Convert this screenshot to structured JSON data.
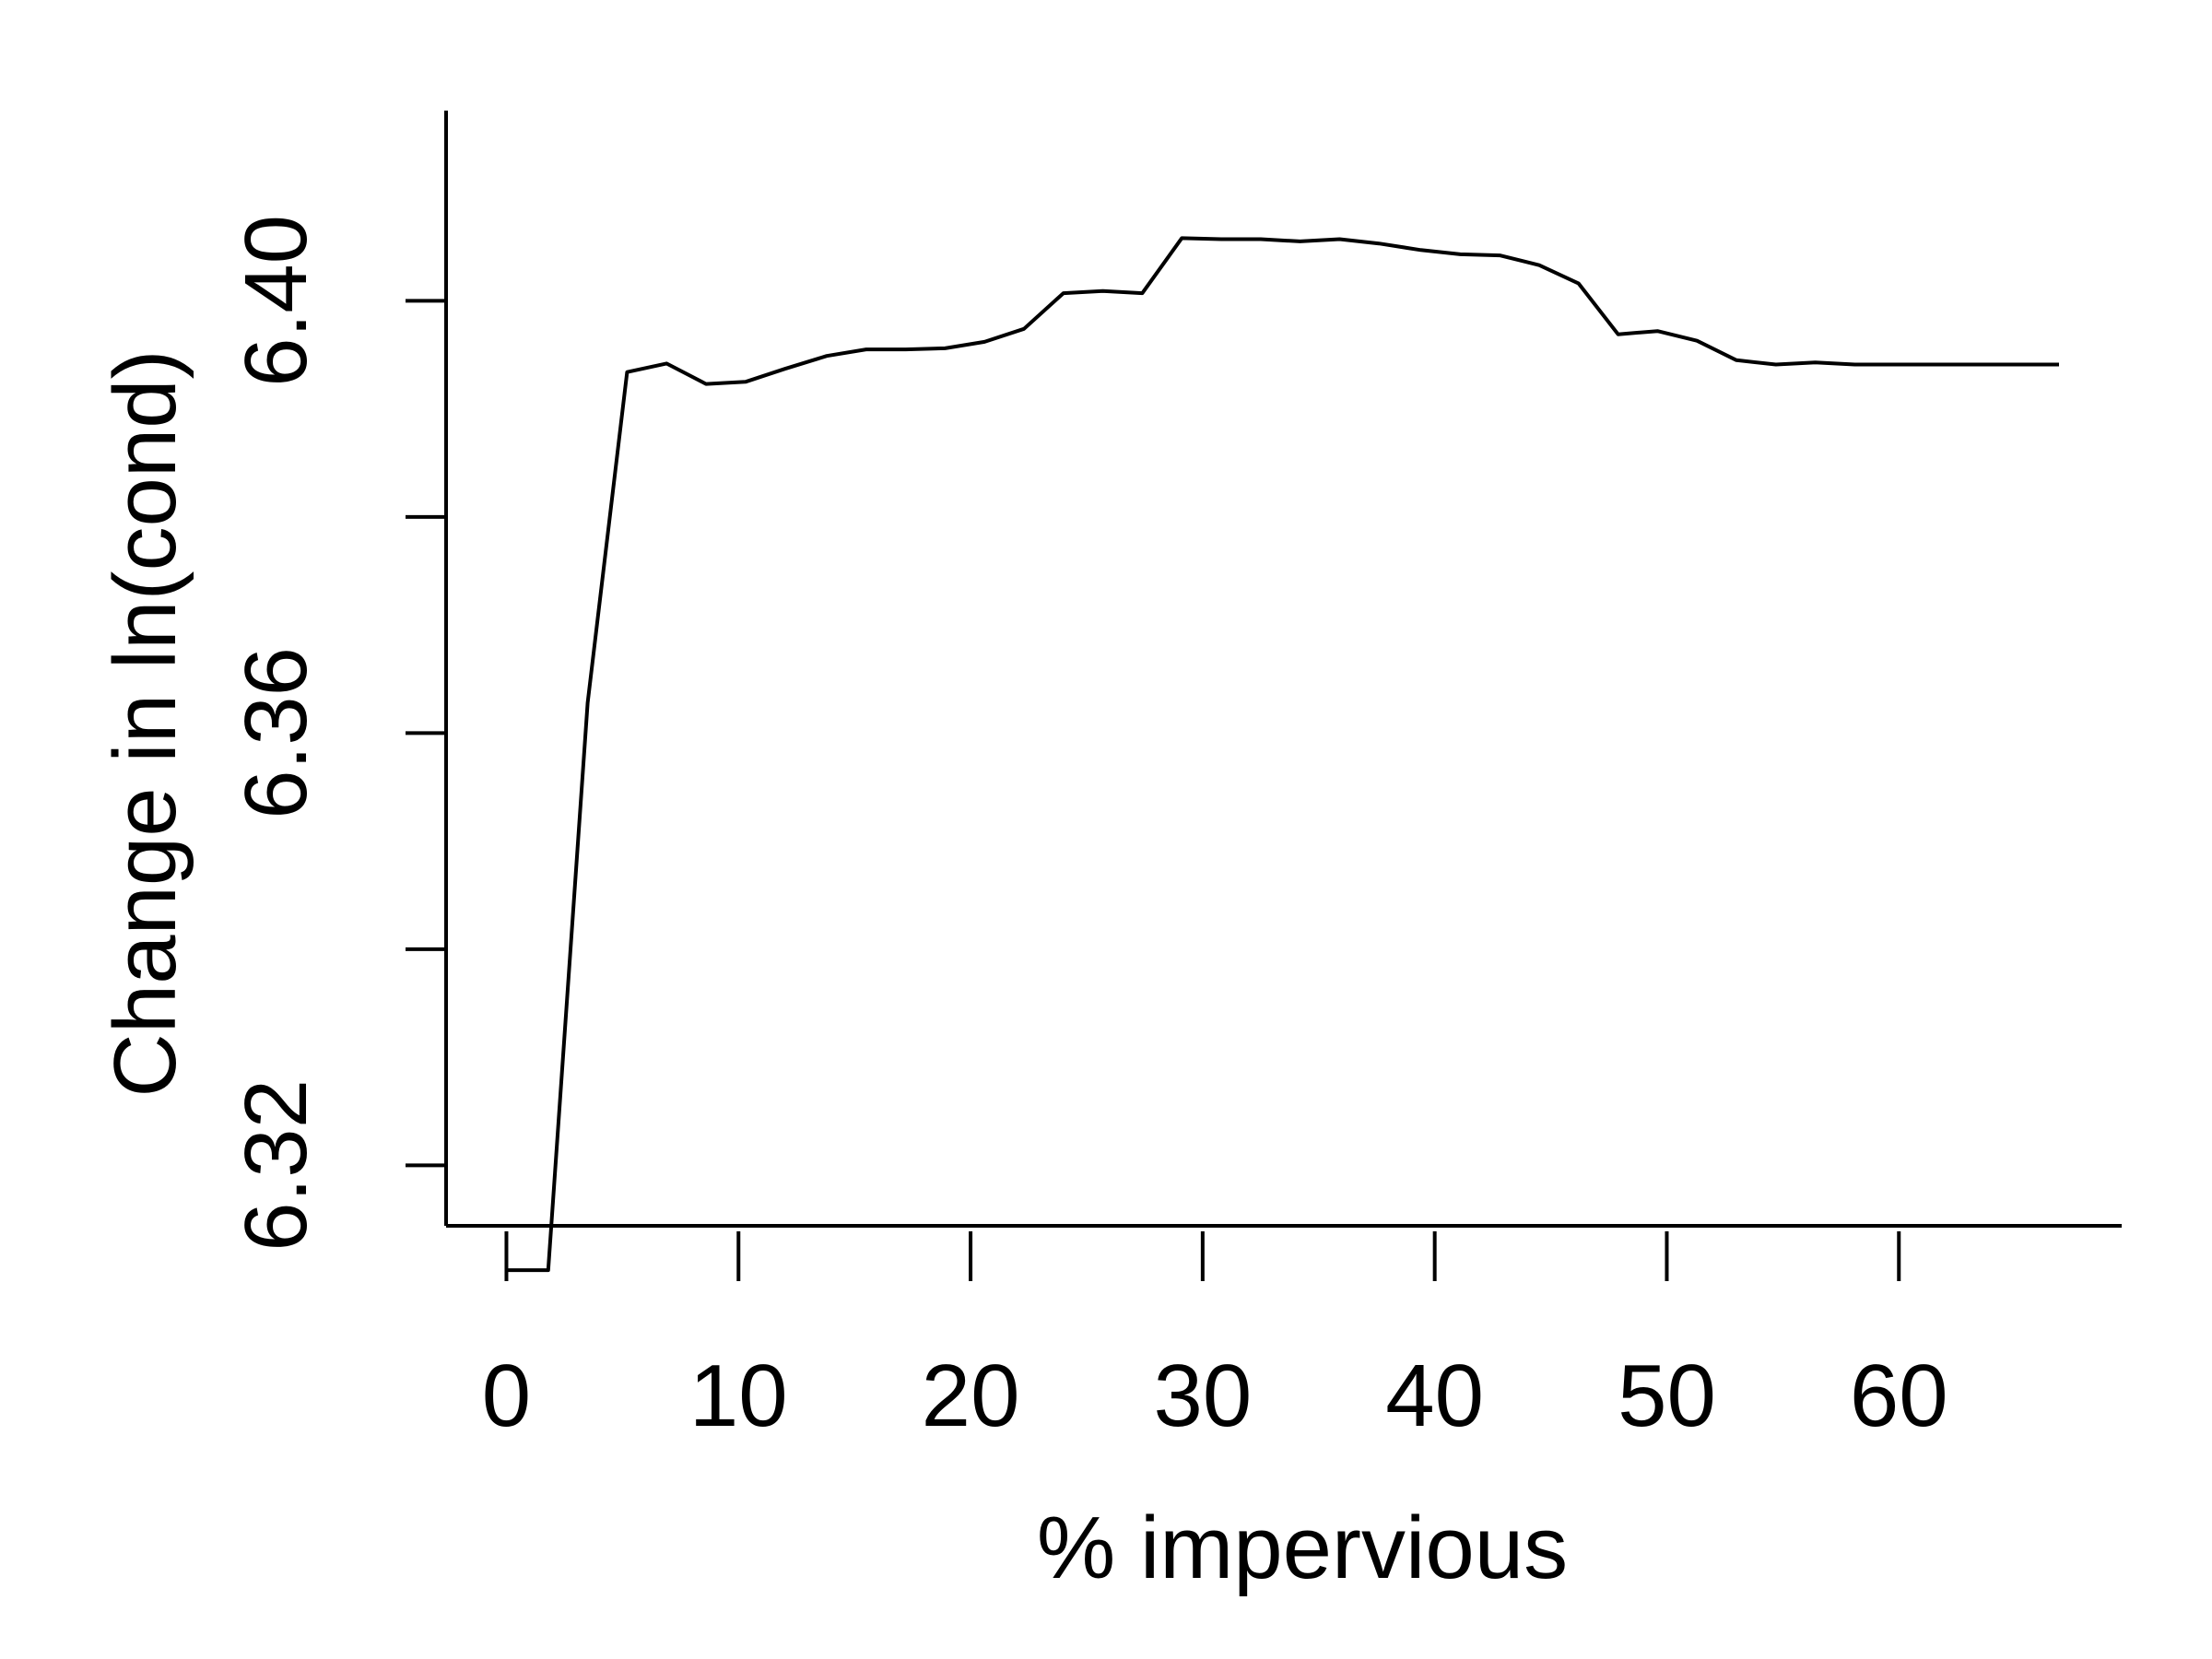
{
  "chart_data": {
    "type": "line",
    "title": "",
    "xlabel": "% impervious",
    "ylabel": "Change in ln(cond)",
    "xlim": [
      -2.6,
      69.6
    ],
    "ylim": [
      6.3144,
      6.4176
    ],
    "x_ticks": [
      0,
      10,
      20,
      30,
      40,
      50,
      60
    ],
    "x_tick_labels": [
      "0",
      "10",
      "20",
      "30",
      "40",
      "50",
      "60"
    ],
    "y_ticks": [
      6.32,
      6.34,
      6.36,
      6.38,
      6.4
    ],
    "y_tick_labels": [
      "6.32",
      "",
      "6.36",
      "",
      "6.40"
    ],
    "grid": false,
    "line_color": "#000000",
    "series": [
      {
        "x": [
          0.0,
          1.8,
          3.5,
          5.2,
          6.9,
          8.6,
          10.3,
          12.0,
          13.8,
          15.5,
          17.2,
          18.9,
          20.6,
          22.3,
          24.0,
          25.7,
          27.4,
          29.1,
          30.8,
          32.5,
          34.2,
          35.9,
          37.6,
          39.4,
          41.1,
          42.8,
          44.5,
          46.2,
          47.9,
          49.6,
          51.3,
          53.0,
          54.7,
          56.4,
          58.1,
          59.8,
          61.5,
          63.2,
          64.9,
          66.9
        ],
        "y": [
          6.3103,
          6.3103,
          6.3628,
          6.3934,
          6.3942,
          6.3923,
          6.3925,
          6.3937,
          6.3949,
          6.3955,
          6.3955,
          6.3956,
          6.3962,
          6.3974,
          6.4007,
          6.4009,
          6.4007,
          6.4058,
          6.4057,
          6.4057,
          6.4055,
          6.4057,
          6.4053,
          6.4047,
          6.4043,
          6.4042,
          6.4033,
          6.4016,
          6.3969,
          6.3972,
          6.3963,
          6.3945,
          6.3941,
          6.3943,
          6.3941,
          6.3941,
          6.3941,
          6.3941,
          6.3941,
          6.3941
        ]
      }
    ]
  }
}
